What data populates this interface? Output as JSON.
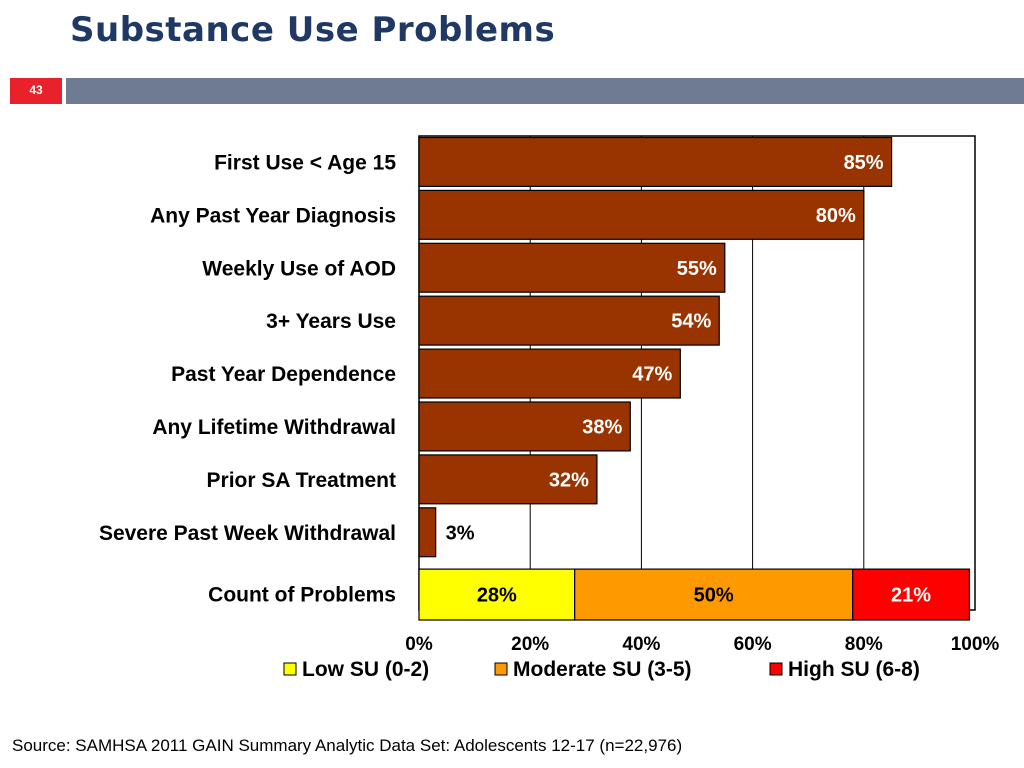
{
  "slide": {
    "title": "Substance Use Problems",
    "number": "43",
    "source": "Source: SAMHSA 2011 GAIN Summary Analytic Data Set: Adolescents 12-17 (n=22,976)"
  },
  "colors": {
    "bar": "#993300",
    "low": "#ffff00",
    "moderate": "#ff9900",
    "high": "#ff0000",
    "title": "#1f3864",
    "header_bar": "#6e7b93",
    "slide_number_bg": "#e8212a"
  },
  "chart_data": {
    "type": "bar",
    "orientation": "horizontal",
    "categories": [
      "First Use < Age 15",
      "Any Past Year Diagnosis",
      "Weekly Use of AOD",
      "3+ Years Use",
      "Past Year Dependence",
      "Any Lifetime Withdrawal",
      "Prior SA Treatment",
      "Severe Past Week Withdrawal"
    ],
    "values": [
      85,
      80,
      55,
      54,
      47,
      38,
      32,
      3
    ],
    "value_labels": [
      "85%",
      "80%",
      "55%",
      "54%",
      "47%",
      "38%",
      "32%",
      "3%"
    ],
    "stacked_row": {
      "category": "Count of Problems",
      "segments": [
        {
          "name": "Low SU (0-2)",
          "value": 28,
          "label": "28%"
        },
        {
          "name": "Moderate SU (3-5)",
          "value": 50,
          "label": "50%"
        },
        {
          "name": "High SU (6-8)",
          "value": 21,
          "label": "21%"
        }
      ]
    },
    "xlim": [
      0,
      100
    ],
    "xticks": [
      0,
      20,
      40,
      60,
      80,
      100
    ],
    "xtick_labels": [
      "0%",
      "20%",
      "40%",
      "60%",
      "80%",
      "100%"
    ],
    "grid": true,
    "legend": {
      "position": "bottom",
      "entries": [
        "Low SU (0-2)",
        "Moderate SU (3-5)",
        "High SU (6-8)"
      ]
    }
  }
}
